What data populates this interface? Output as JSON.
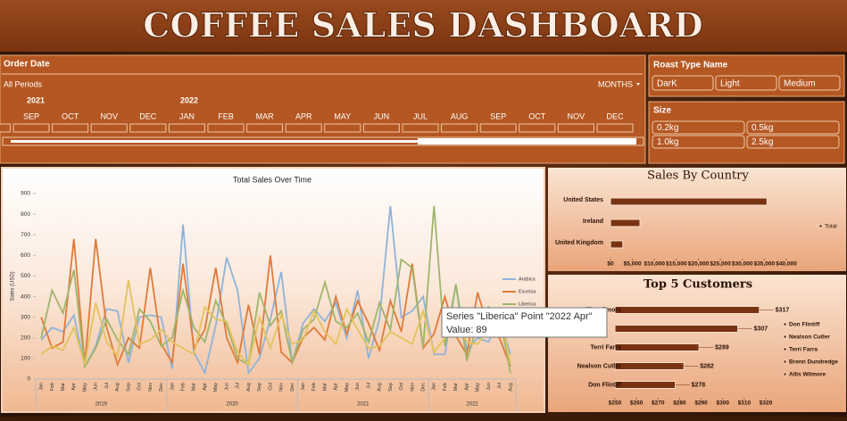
{
  "header": {
    "title": "COFFEE SALES DASHBOARD"
  },
  "timeline": {
    "title": "Order Date",
    "period": "All Periods",
    "level": "MONTHS",
    "years": [
      "2021",
      "2022"
    ],
    "months": [
      "S",
      "SEP",
      "OCT",
      "NOV",
      "DEC",
      "JAN",
      "FEB",
      "MAR",
      "APR",
      "MAY",
      "JUN",
      "JUL",
      "AUG",
      "SEP",
      "OCT",
      "NOV",
      "DEC"
    ]
  },
  "roast": {
    "title": "Roast Type Name",
    "items": [
      "DarK",
      "Light",
      "Medium"
    ]
  },
  "size": {
    "title": "Size",
    "items": [
      "0.2kg",
      "0.5kg",
      "1.0kg",
      "2.5kg"
    ]
  },
  "chart_data": [
    {
      "type": "line",
      "title": "Total Sales Over Time",
      "y_label": "Sales (USD)",
      "categories": [
        "Jan",
        "Feb",
        "Mar",
        "Apr",
        "May",
        "Jun",
        "Jul",
        "Aug",
        "Sep",
        "Oct",
        "Nov",
        "Dec",
        "Jan",
        "Feb",
        "Mar",
        "Apr",
        "May",
        "Jun",
        "Jul",
        "Aug",
        "Sep",
        "Oct",
        "Nov",
        "Dec",
        "Jan",
        "Feb",
        "Mar",
        "Apr",
        "May",
        "Jun",
        "Jul",
        "Aug",
        "Sep",
        "Oct",
        "Nov",
        "Dec",
        "Jan",
        "Feb",
        "Mar",
        "Apr",
        "May",
        "Jun",
        "Jul",
        "Aug"
      ],
      "groups": [
        "2019",
        "2020",
        "2021",
        "2022"
      ],
      "ylim": [
        0,
        900
      ],
      "yticks": [
        0,
        100,
        200,
        300,
        400,
        500,
        600,
        700,
        800,
        900
      ],
      "legend": "right",
      "series": [
        {
          "name": "Arabica",
          "color": "#8fb3d8",
          "values": [
            190,
            250,
            230,
            310,
            60,
            160,
            340,
            330,
            80,
            300,
            310,
            300,
            50,
            750,
            130,
            30,
            260,
            590,
            430,
            30,
            100,
            290,
            520,
            80,
            270,
            340,
            280,
            370,
            200,
            430,
            100,
            290,
            840,
            300,
            330,
            400,
            120,
            120,
            460,
            140,
            200,
            180,
            300,
            120
          ]
        },
        {
          "name": "Excelsa",
          "color": "#e07a3a",
          "values": [
            300,
            150,
            180,
            680,
            70,
            680,
            250,
            70,
            200,
            150,
            540,
            170,
            80,
            560,
            150,
            240,
            540,
            200,
            80,
            360,
            120,
            600,
            130,
            80,
            200,
            250,
            190,
            400,
            220,
            380,
            270,
            140,
            380,
            230,
            560,
            150,
            220,
            400,
            210,
            120,
            420,
            240,
            200,
            60
          ]
        },
        {
          "name": "Liberica",
          "color": "#9fb56c",
          "values": [
            200,
            430,
            320,
            530,
            60,
            150,
            290,
            190,
            120,
            340,
            280,
            160,
            200,
            430,
            250,
            180,
            380,
            260,
            100,
            70,
            420,
            260,
            330,
            80,
            240,
            290,
            470,
            280,
            250,
            320,
            180,
            370,
            240,
            580,
            540,
            150,
            840,
            160,
            460,
            89,
            270,
            350,
            310,
            30
          ]
        },
        {
          "color": "#e3c35c",
          "values": [
            120,
            160,
            140,
            250,
            70,
            370,
            180,
            110,
            480,
            170,
            190,
            240,
            180,
            150,
            120,
            350,
            290,
            280,
            130,
            70,
            300,
            150,
            310,
            170,
            190,
            330,
            230,
            170,
            340,
            240,
            150,
            160,
            230,
            200,
            170,
            330,
            130,
            200,
            290,
            180,
            170,
            240,
            330,
            80
          ]
        }
      ]
    },
    {
      "type": "barh",
      "title": "Sales By Country",
      "categories": [
        "United States",
        "Ireland",
        "United Kingdom"
      ],
      "series": [
        {
          "name": "Total",
          "color": "#7a3312",
          "values": [
            35600,
            6700,
            2800
          ]
        }
      ],
      "xlim": [
        0,
        40000
      ],
      "xticks": [
        {
          "value": 0,
          "label": "$0"
        },
        {
          "value": 5000,
          "label": "$5,000"
        },
        {
          "value": 10000,
          "label": "$10,000"
        },
        {
          "value": 15000,
          "label": "$15,000"
        },
        {
          "value": 20000,
          "label": "$20,000"
        },
        {
          "value": 25000,
          "label": "$25,000"
        },
        {
          "value": 30000,
          "label": "$30,000"
        },
        {
          "value": 35000,
          "label": "$35,000"
        },
        {
          "value": 40000,
          "label": "$40,000"
        }
      ]
    },
    {
      "type": "barh",
      "title": "Top 5 Customers",
      "categories": [
        "Allis Wilmore",
        null,
        "Terri Farra",
        "Nealson Cutler",
        "Don Flintiff"
      ],
      "values": [
        317,
        307,
        289,
        282,
        278
      ],
      "value_labels": [
        "$317",
        "$307",
        "$289",
        "$282",
        "$278"
      ],
      "color": "#7a3312",
      "legend": [
        "Don Flintiff",
        "Nealson Cutler",
        "Terri Farra",
        "Brenn Dundredge",
        "Allis Wilmore"
      ],
      "xlim": [
        250,
        320
      ],
      "xticks": [
        {
          "value": 250,
          "label": "$250"
        },
        {
          "value": 260,
          "label": "$260"
        },
        {
          "value": 270,
          "label": "$270"
        },
        {
          "value": 280,
          "label": "$280"
        },
        {
          "value": 290,
          "label": "$290"
        },
        {
          "value": 300,
          "label": "$300"
        },
        {
          "value": 310,
          "label": "$310"
        },
        {
          "value": 320,
          "label": "$320"
        }
      ]
    }
  ],
  "tooltip": {
    "line1": "Series \"Liberica\" Point \"2022 Apr\"",
    "line2": "Value: 89"
  }
}
